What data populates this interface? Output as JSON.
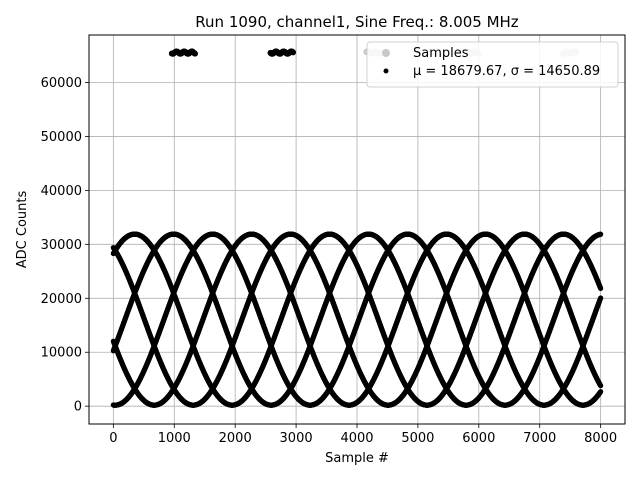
{
  "chart_data": {
    "type": "scatter",
    "title": "Run 1090, channel1, Sine Freq.: 8.005 MHz",
    "xlabel": "Sample #",
    "ylabel": "ADC Counts",
    "xlim": [
      -400,
      8400
    ],
    "ylim": [
      -3300,
      68800
    ],
    "xticks": [
      0,
      1000,
      2000,
      3000,
      4000,
      5000,
      6000,
      7000,
      8000
    ],
    "yticks": [
      0,
      10000,
      20000,
      30000,
      40000,
      50000,
      60000
    ],
    "grid": true,
    "legend": {
      "placement": "top-right",
      "entries": [
        {
          "name": "Samples",
          "marker": "dot",
          "color": "#c8c8c8"
        },
        {
          "name": "μ = 18679.67, σ = 14650.89",
          "marker": "dot",
          "color": "#000000"
        }
      ]
    },
    "sample_range": [
      0,
      8000
    ],
    "colors": {
      "samples": "#c8c8c8",
      "fit": "#000000",
      "grid": "#b0b0b0"
    },
    "series": [
      {
        "name": "samples",
        "color": "#000000",
        "model": "sine",
        "amplitude": 15850,
        "offset": 16050,
        "period_samples": 3200,
        "phase_shifts_samples": [
          0,
          640,
          1280,
          1920,
          2560
        ],
        "reference_peak_sample": 350
      },
      {
        "name": "overflow_samples",
        "color": "#000000",
        "value": 65535,
        "x_ranges": [
          [
            960,
            1340
          ],
          [
            2580,
            2950
          ],
          [
            4160,
            4180
          ],
          [
            5790,
            5810
          ],
          [
            7390,
            7410
          ]
        ]
      },
      {
        "name": "legend_overlap_points",
        "color": "#c8c8c8",
        "value": 65535,
        "x_ranges": [
          [
            4160,
            4400
          ],
          [
            5790,
            6000
          ],
          [
            7390,
            7600
          ]
        ]
      }
    ]
  }
}
